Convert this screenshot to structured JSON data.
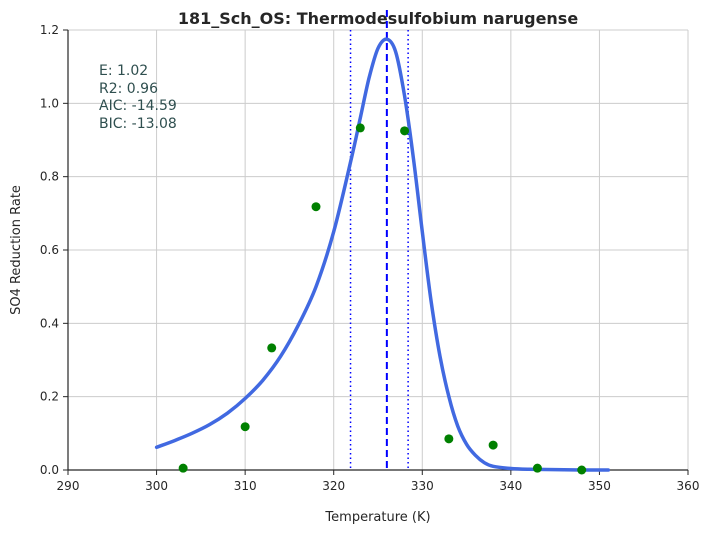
{
  "chart_data": {
    "type": "scatter",
    "title": "181_Sch_OS: Thermodesulfobium narugense",
    "xlabel": "Temperature (K)",
    "ylabel": "SO4 Reduction Rate",
    "xlim": [
      290,
      360
    ],
    "ylim": [
      0.0,
      1.2
    ],
    "xticks": [
      "290",
      "300",
      "310",
      "320",
      "330",
      "340",
      "350",
      "360"
    ],
    "yticks": [
      "0.0",
      "0.2",
      "0.4",
      "0.6",
      "0.8",
      "1.0",
      "1.2"
    ],
    "grid": true,
    "annotations": [
      "E:  1.02",
      "R2:  0.96",
      "AIC: -14.59",
      "BIC: -13.08"
    ],
    "colors": {
      "fit_line": "#4169e1",
      "points": "#008000",
      "peak_line": "#0000ff",
      "interval_lines": "#0000ff"
    },
    "points": {
      "x": [
        303,
        310,
        313,
        318,
        323,
        328,
        333,
        338,
        343,
        348
      ],
      "y": [
        0.005,
        0.118,
        0.333,
        0.718,
        0.933,
        0.925,
        0.085,
        0.068,
        0.005,
        0.0
      ]
    },
    "fit_curve": {
      "x": [
        300,
        302,
        304,
        306,
        308,
        310,
        312,
        314,
        316,
        318,
        320,
        322,
        323,
        324,
        325,
        326,
        327,
        328,
        329,
        330,
        331,
        332,
        333,
        334,
        335,
        336,
        337,
        338,
        340,
        342,
        345,
        348,
        351
      ],
      "y": [
        0.062,
        0.08,
        0.1,
        0.124,
        0.155,
        0.195,
        0.245,
        0.31,
        0.395,
        0.5,
        0.65,
        0.85,
        0.96,
        1.07,
        1.15,
        1.175,
        1.14,
        1.02,
        0.85,
        0.65,
        0.46,
        0.31,
        0.2,
        0.12,
        0.07,
        0.04,
        0.02,
        0.01,
        0.004,
        0.002,
        0.001,
        0.0,
        0.0
      ]
    },
    "peak_x": 326,
    "interval_x": [
      321.9,
      328.4
    ]
  }
}
